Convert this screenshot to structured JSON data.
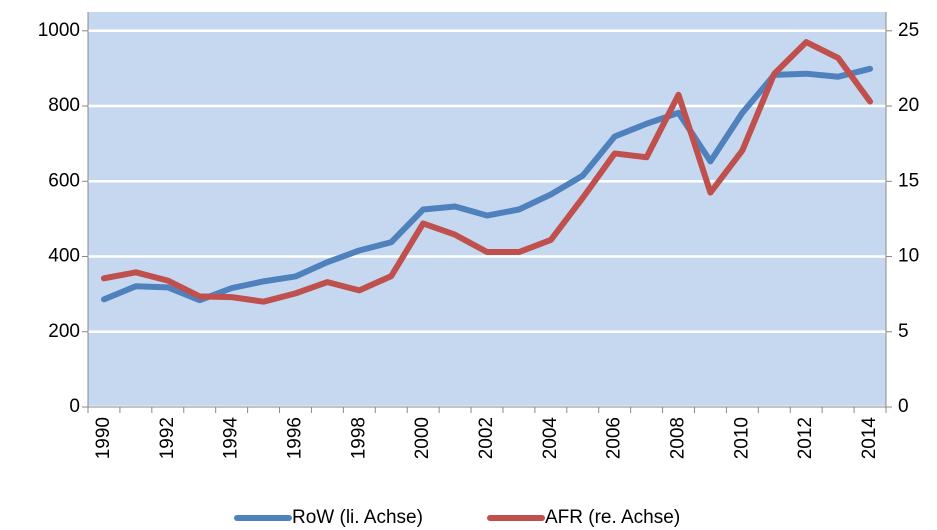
{
  "chart_data": {
    "type": "line",
    "categories": [
      "1990",
      null,
      "1992",
      null,
      "1994",
      null,
      "1996",
      null,
      "1998",
      null,
      "2000",
      null,
      "2002",
      null,
      "2004",
      null,
      "2006",
      null,
      "2008",
      null,
      "2010",
      null,
      "2012",
      null,
      "2014"
    ],
    "series": [
      {
        "name": "RoW (li. Achse)",
        "color": "#4f81bd",
        "values": [
          286,
          321,
          318,
          284,
          316,
          334,
          347,
          385,
          416,
          438,
          525,
          533,
          509,
          525,
          565,
          615,
          719,
          753,
          782,
          653,
          782,
          883,
          886,
          878,
          899
        ]
      },
      {
        "name": "AFR (re. Achse)",
        "color": "#c0504d",
        "axis": "y2",
        "values": [
          8.55,
          8.95,
          8.4,
          7.35,
          7.3,
          7.0,
          7.55,
          8.3,
          7.75,
          8.7,
          12.2,
          11.45,
          10.3,
          10.3,
          11.1,
          13.9,
          16.85,
          16.6,
          20.75,
          14.25,
          17.05,
          22.15,
          24.25,
          23.2,
          20.3
        ]
      }
    ],
    "ylim": [
      0,
      1050
    ],
    "yticks": [
      0,
      200,
      400,
      600,
      800,
      1000
    ],
    "y2lim": [
      0,
      26.25
    ],
    "y2ticks": [
      0,
      5,
      10,
      15,
      20,
      25
    ],
    "grid": true,
    "legend": "bottom",
    "background": "#c6d8f0"
  }
}
